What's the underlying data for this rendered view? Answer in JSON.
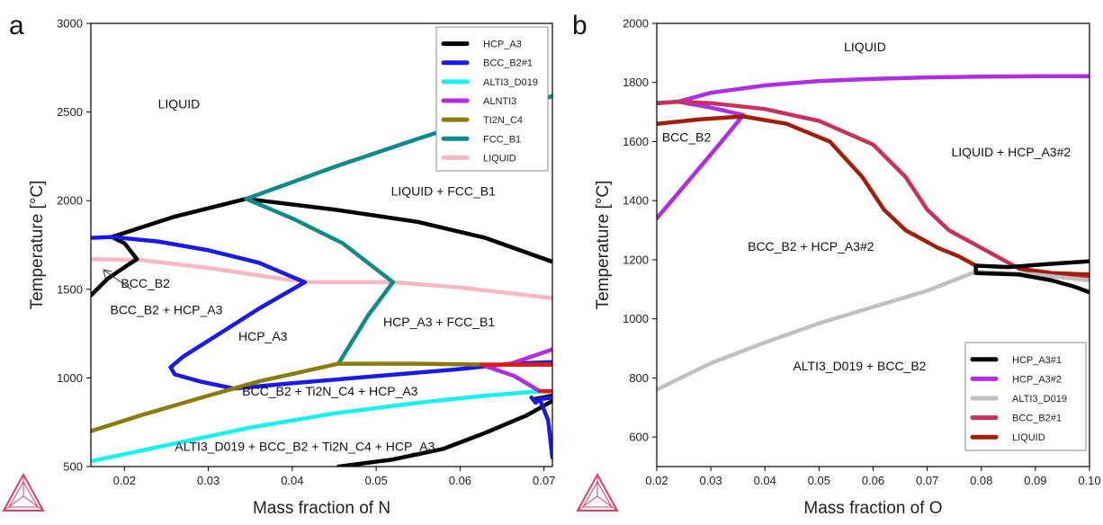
{
  "chart_data": [
    {
      "panel": "a",
      "type": "line",
      "xlabel": "Mass fraction of N",
      "ylabel": "Temperature [°C]",
      "xlim": [
        0.016,
        0.071
      ],
      "ylim": [
        500,
        3000
      ],
      "xticks": [
        0.02,
        0.03,
        0.04,
        0.05,
        0.06,
        0.07
      ],
      "xtick_labels": [
        "0.02",
        "0.03",
        "0.04",
        "0.05",
        "0.06",
        "0.07"
      ],
      "yticks": [
        500,
        1000,
        1500,
        2000,
        2500,
        3000
      ],
      "legend_position": "top-right",
      "legend": [
        {
          "name": "HCP_A3",
          "color": "#000000"
        },
        {
          "name": "BCC_B2#1",
          "color": "#1a1ae6"
        },
        {
          "name": "ALTI3_D019",
          "color": "#19f0f0"
        },
        {
          "name": "ALNTI3",
          "color": "#b02de0"
        },
        {
          "name": "TI2N_C4",
          "color": "#8c7a0a"
        },
        {
          "name": "FCC_B1",
          "color": "#0f8a8a"
        },
        {
          "name": "LIQUID",
          "color": "#f7b8c4"
        }
      ],
      "series": [
        {
          "name": "LIQUID",
          "color": "#f7b8c4",
          "points": [
            [
              0.016,
              1670
            ],
            [
              0.022,
              1665
            ],
            [
              0.03,
              1620
            ],
            [
              0.0415,
              1540
            ],
            [
              0.052,
              1540
            ],
            [
              0.06,
              1510
            ],
            [
              0.071,
              1450
            ]
          ]
        },
        {
          "name": "HCP_A3",
          "color": "#000000",
          "points": [
            [
              0.016,
              1465
            ],
            [
              0.018,
              1560
            ],
            [
              0.0205,
              1640
            ],
            [
              0.0215,
              1670
            ],
            [
              0.02,
              1760
            ],
            [
              0.0185,
              1795
            ]
          ]
        },
        {
          "name": "HCP_A3",
          "color": "#000000",
          "points": [
            [
              0.0185,
              1795
            ],
            [
              0.026,
              1910
            ],
            [
              0.0345,
              2010
            ]
          ]
        },
        {
          "name": "HCP_A3",
          "color": "#000000",
          "points": [
            [
              0.0345,
              2010
            ],
            [
              0.045,
              1950
            ],
            [
              0.055,
              1880
            ],
            [
              0.063,
              1790
            ],
            [
              0.071,
              1655
            ]
          ]
        },
        {
          "name": "HCP_A3",
          "color": "#000000",
          "points": [
            [
              0.0455,
              500
            ],
            [
              0.052,
              540
            ],
            [
              0.058,
              600
            ],
            [
              0.063,
              690
            ],
            [
              0.068,
              790
            ],
            [
              0.071,
              870
            ]
          ]
        },
        {
          "name": "HCP_A3",
          "color": "#000000",
          "points": [
            [
              0.0688,
              880
            ],
            [
              0.071,
              900
            ]
          ]
        },
        {
          "name": "BCC_B2#1",
          "color": "#1a1ae6",
          "points": [
            [
              0.016,
              1790
            ],
            [
              0.0185,
              1795
            ],
            [
              0.024,
              1770
            ],
            [
              0.03,
              1720
            ],
            [
              0.036,
              1650
            ],
            [
              0.0415,
              1540
            ],
            [
              0.036,
              1390
            ],
            [
              0.031,
              1240
            ],
            [
              0.027,
              1120
            ],
            [
              0.0255,
              1060
            ],
            [
              0.026,
              1020
            ],
            [
              0.029,
              980
            ],
            [
              0.033,
              940
            ],
            [
              0.04,
              970
            ],
            [
              0.05,
              1010
            ],
            [
              0.06,
              1050
            ],
            [
              0.066,
              1080
            ],
            [
              0.071,
              1090
            ]
          ]
        },
        {
          "name": "BCC_B2#1",
          "color": "#1a1ae6",
          "points": [
            [
              0.0695,
              880
            ],
            [
              0.0705,
              760
            ],
            [
              0.071,
              550
            ]
          ]
        },
        {
          "name": "BCC_B2#1",
          "color": "#1a1ae6",
          "points": [
            [
              0.0685,
              890
            ],
            [
              0.069,
              860
            ],
            [
              0.0695,
              880
            ],
            [
              0.071,
              890
            ]
          ]
        },
        {
          "name": "FCC_B1",
          "color": "#0f8a8a",
          "points": [
            [
              0.0345,
              2010
            ],
            [
              0.045,
              2190
            ],
            [
              0.055,
              2350
            ],
            [
              0.063,
              2470
            ],
            [
              0.071,
              2590
            ]
          ]
        },
        {
          "name": "FCC_B1",
          "color": "#0f8a8a",
          "points": [
            [
              0.0345,
              2010
            ],
            [
              0.04,
              1900
            ],
            [
              0.046,
              1760
            ],
            [
              0.052,
              1540
            ]
          ]
        },
        {
          "name": "FCC_B1",
          "color": "#0f8a8a",
          "points": [
            [
              0.052,
              1540
            ],
            [
              0.049,
              1350
            ],
            [
              0.0455,
              1080
            ]
          ]
        },
        {
          "name": "TI2N_C4",
          "color": "#8c7a0a",
          "points": [
            [
              0.016,
              700
            ],
            [
              0.022,
              790
            ],
            [
              0.03,
              900
            ],
            [
              0.036,
              980
            ],
            [
              0.0455,
              1080
            ],
            [
              0.055,
              1080
            ],
            [
              0.063,
              1075
            ],
            [
              0.071,
              1075
            ]
          ]
        },
        {
          "name": "ALTI3_D019",
          "color": "#19f0f0",
          "points": [
            [
              0.016,
              530
            ],
            [
              0.025,
              620
            ],
            [
              0.035,
              720
            ],
            [
              0.045,
              800
            ],
            [
              0.055,
              860
            ],
            [
              0.063,
              900
            ],
            [
              0.0695,
              925
            ]
          ]
        },
        {
          "name": "ALNTI3",
          "color": "#b02de0",
          "points": [
            [
              0.0625,
              1075
            ],
            [
              0.0665,
              1010
            ],
            [
              0.0695,
              925
            ]
          ]
        },
        {
          "name": "ALNTI3",
          "color": "#b02de0",
          "points": [
            [
              0.066,
              1080
            ],
            [
              0.071,
              1160
            ]
          ]
        },
        {
          "name": "ALNTI3",
          "color": "#e01a1a",
          "points": [
            [
              0.0625,
              1075
            ],
            [
              0.071,
              1075
            ]
          ]
        },
        {
          "name": "ALNTI3",
          "color": "#e01a1a",
          "points": [
            [
              0.0695,
              925
            ],
            [
              0.071,
              925
            ]
          ]
        }
      ],
      "annotations": [
        {
          "text": "LIQUID",
          "x": 0.0265,
          "y": 2520
        },
        {
          "text": "LIQUID + FCC_B1",
          "x": 0.058,
          "y": 2030
        },
        {
          "text": "BCC_B2",
          "x": 0.0225,
          "y": 1510
        },
        {
          "text": "BCC_B2 + HCP_A3",
          "x": 0.025,
          "y": 1360
        },
        {
          "text": "HCP_A3",
          "x": 0.0365,
          "y": 1210
        },
        {
          "text": "HCP_A3 + FCC_B1",
          "x": 0.0575,
          "y": 1290
        },
        {
          "text": "BCC_B2 + Ti2N_C4 + HCP_A3",
          "x": 0.0445,
          "y": 900
        },
        {
          "text": "ALTI3_D019 + BCC_B2 + Ti2N_C4 + HCP_A3",
          "x": 0.0415,
          "y": 590
        }
      ]
    },
    {
      "panel": "b",
      "type": "line",
      "xlabel": "Mass fraction of O",
      "ylabel": "Temperature [°C]",
      "xlim": [
        0.02,
        0.1
      ],
      "ylim": [
        500,
        2000
      ],
      "xticks": [
        0.02,
        0.03,
        0.04,
        0.05,
        0.06,
        0.07,
        0.08,
        0.09,
        0.1
      ],
      "xtick_labels": [
        "0.02",
        "0.03",
        "0.04",
        "0.05",
        "0.06",
        "0.07",
        "0.08",
        "0.09",
        "0.10"
      ],
      "yticks": [
        600,
        800,
        1000,
        1200,
        1400,
        1600,
        1800,
        2000
      ],
      "legend_position": "bottom-right",
      "legend": [
        {
          "name": "HCP_A3#1",
          "color": "#000000"
        },
        {
          "name": "HCP_A3#2",
          "color": "#b02de0"
        },
        {
          "name": "ALTI3_D019",
          "color": "#c0c0c0"
        },
        {
          "name": "BCC_B2#1",
          "color": "#c8325a"
        },
        {
          "name": "LIQUID",
          "color": "#a01e0a"
        }
      ],
      "series": [
        {
          "name": "HCP_A3#2",
          "color": "#b02de0",
          "points": [
            [
              0.02,
              1730
            ],
            [
              0.024,
              1735
            ],
            [
              0.03,
              1765
            ],
            [
              0.04,
              1790
            ],
            [
              0.05,
              1805
            ],
            [
              0.06,
              1812
            ],
            [
              0.07,
              1817
            ],
            [
              0.08,
              1820
            ],
            [
              0.09,
              1821
            ],
            [
              0.1,
              1821
            ]
          ]
        },
        {
          "name": "HCP_A3#2",
          "color": "#b02de0",
          "points": [
            [
              0.02,
              1340
            ],
            [
              0.026,
              1470
            ],
            [
              0.032,
              1600
            ],
            [
              0.036,
              1690
            ],
            [
              0.03,
              1715
            ],
            [
              0.024,
              1735
            ]
          ]
        },
        {
          "name": "BCC_B2#1",
          "color": "#c8325a",
          "points": [
            [
              0.02,
              1730
            ],
            [
              0.024,
              1735
            ],
            [
              0.03,
              1730
            ],
            [
              0.04,
              1710
            ],
            [
              0.05,
              1670
            ],
            [
              0.06,
              1590
            ],
            [
              0.066,
              1480
            ],
            [
              0.07,
              1370
            ],
            [
              0.074,
              1300
            ],
            [
              0.08,
              1240
            ],
            [
              0.087,
              1170
            ],
            [
              0.093,
              1150
            ],
            [
              0.1,
              1140
            ]
          ]
        },
        {
          "name": "LIQUID",
          "color": "#a01e0a",
          "points": [
            [
              0.02,
              1660
            ],
            [
              0.028,
              1675
            ],
            [
              0.036,
              1685
            ],
            [
              0.044,
              1660
            ],
            [
              0.052,
              1600
            ],
            [
              0.058,
              1480
            ],
            [
              0.062,
              1370
            ],
            [
              0.066,
              1300
            ],
            [
              0.072,
              1240
            ],
            [
              0.076,
              1210
            ],
            [
              0.079,
              1180
            ]
          ]
        },
        {
          "name": "LIQUID",
          "color": "#a01e0a",
          "points": [
            [
              0.087,
              1170
            ],
            [
              0.093,
              1155
            ],
            [
              0.1,
              1150
            ]
          ]
        },
        {
          "name": "ALTI3_D019",
          "color": "#c0c0c0",
          "points": [
            [
              0.02,
              760
            ],
            [
              0.03,
              850
            ],
            [
              0.04,
              920
            ],
            [
              0.05,
              985
            ],
            [
              0.06,
              1040
            ],
            [
              0.07,
              1095
            ],
            [
              0.079,
              1160
            ],
            [
              0.09,
              1150
            ],
            [
              0.1,
              1130
            ]
          ]
        },
        {
          "name": "HCP_A3#1",
          "color": "#000000",
          "points": [
            [
              0.079,
              1180
            ],
            [
              0.079,
              1155
            ],
            [
              0.087,
              1150
            ],
            [
              0.093,
              1130
            ],
            [
              0.097,
              1110
            ],
            [
              0.1,
              1090
            ]
          ]
        },
        {
          "name": "HCP_A3#1",
          "color": "#000000",
          "points": [
            [
              0.079,
              1180
            ],
            [
              0.085,
              1175
            ],
            [
              0.092,
              1185
            ],
            [
              0.1,
              1195
            ]
          ]
        }
      ],
      "annotations": [
        {
          "text": "LIQUID",
          "x": 0.0585,
          "y": 1905
        },
        {
          "text": "BCC_B2",
          "x": 0.0255,
          "y": 1600
        },
        {
          "text": "LIQUID + HCP_A3#2",
          "x": 0.0855,
          "y": 1550
        },
        {
          "text": "BCC_B2 + HCP_A3#2",
          "x": 0.0485,
          "y": 1230
        },
        {
          "text": "ALTI3_D019 + BCC_B2",
          "x": 0.0575,
          "y": 825
        }
      ]
    }
  ],
  "panels": {
    "a": {
      "letter": "a"
    },
    "b": {
      "letter": "b"
    }
  }
}
